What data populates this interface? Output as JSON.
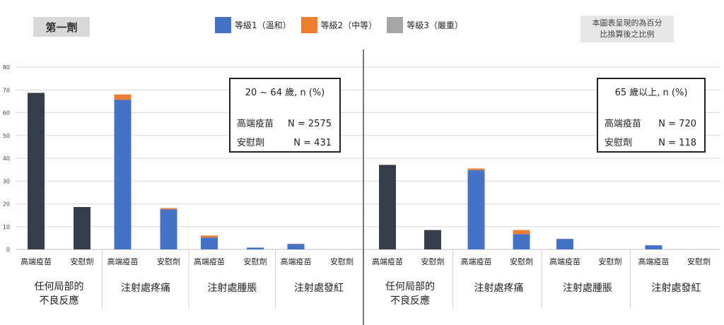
{
  "dose_label": "第一劑",
  "legend": [
    {
      "label": "等級1（溫和）",
      "color": "#4472c4"
    },
    {
      "label": "等級2（中等）",
      "color": "#ed7d31"
    },
    {
      "label": "等級3（嚴重）",
      "color": "#a5a5a5"
    }
  ],
  "note": [
    "本圖表呈現的為百分",
    "比換算後之比例"
  ],
  "chart_data": [
    {
      "type": "bar",
      "stacked": true,
      "ylim": [
        0,
        80
      ],
      "yticks": [
        0,
        10,
        20,
        30,
        40,
        50,
        60,
        70,
        80
      ],
      "info_box": {
        "title": "20 ~ 64 歲, n (%)",
        "rows": [
          [
            "高端疫苗",
            "N = 2575"
          ],
          [
            "安慰劑",
            "N = 431"
          ]
        ]
      },
      "groups": [
        {
          "label": [
            "任何局部的",
            "不良反應"
          ],
          "bars": [
            {
              "label": "高端疫苗",
              "total": 68.7,
              "grades": null
            },
            {
              "label": "安慰劑",
              "total": 18.6,
              "grades": null
            }
          ]
        },
        {
          "label": [
            "注射處疼痛"
          ],
          "bars": [
            {
              "label": "高端疫苗",
              "grades": [
                65.7,
                2.3,
                0
              ]
            },
            {
              "label": "安慰劑",
              "grades": [
                17.6,
                0.5,
                0
              ]
            }
          ]
        },
        {
          "label": [
            "注射處腫脹"
          ],
          "bars": [
            {
              "label": "高端疫苗",
              "grades": [
                5.2,
                0.9,
                0
              ]
            },
            {
              "label": "安慰劑",
              "grades": [
                0.8,
                0,
                0
              ]
            }
          ]
        },
        {
          "label": [
            "注射處發紅"
          ],
          "bars": [
            {
              "label": "高端疫苗",
              "grades": [
                2.4,
                0.1,
                0
              ]
            },
            {
              "label": "安慰劑",
              "grades": [
                0,
                0,
                0
              ]
            }
          ]
        }
      ]
    },
    {
      "type": "bar",
      "stacked": true,
      "ylim": [
        0,
        80
      ],
      "info_box": {
        "title": "65 歲以上, n (%)",
        "rows": [
          [
            "高端疫苗",
            "N = 720"
          ],
          [
            "安慰劑",
            "N = 118"
          ]
        ]
      },
      "groups": [
        {
          "label": [
            "任何局部的",
            "不良反應"
          ],
          "bars": [
            {
              "label": "高端疫苗",
              "total": 37.1,
              "grades": null
            },
            {
              "label": "安慰劑",
              "total": 8.5,
              "grades": null
            }
          ]
        },
        {
          "label": [
            "注射處疼痛"
          ],
          "bars": [
            {
              "label": "高端疫苗",
              "grades": [
                34.8,
                0.7,
                0
              ]
            },
            {
              "label": "安慰劑",
              "grades": [
                6.7,
                1.8,
                0
              ]
            }
          ]
        },
        {
          "label": [
            "注射處腫脹"
          ],
          "bars": [
            {
              "label": "高端疫苗",
              "grades": [
                4.6,
                0,
                0
              ]
            },
            {
              "label": "安慰劑",
              "grades": [
                0,
                0,
                0
              ]
            }
          ]
        },
        {
          "label": [
            "注射處發紅"
          ],
          "bars": [
            {
              "label": "高端疫苗",
              "grades": [
                1.8,
                0,
                0
              ]
            },
            {
              "label": "安慰劑",
              "grades": [
                0,
                0,
                0
              ]
            }
          ]
        }
      ]
    }
  ]
}
